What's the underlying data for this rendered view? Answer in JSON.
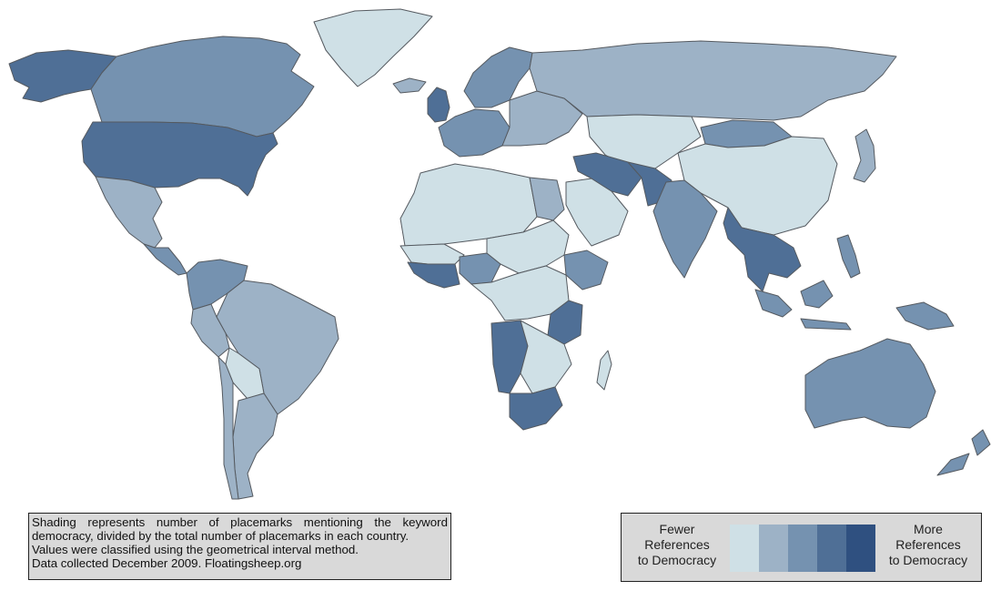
{
  "map": {
    "classes": [
      "#cfe0e6",
      "#9db2c6",
      "#7592b0",
      "#4f6f96",
      "#2f5080"
    ],
    "ocean_color": "#ffffff",
    "border_color": "#555a60",
    "regions": [
      {
        "name": "alaska",
        "class": 3
      },
      {
        "name": "canada",
        "class": 2
      },
      {
        "name": "greenland",
        "class": 0
      },
      {
        "name": "usa",
        "class": 3
      },
      {
        "name": "mexico",
        "class": 1
      },
      {
        "name": "central-america",
        "class": 2
      },
      {
        "name": "colombia-venezuela",
        "class": 2
      },
      {
        "name": "brazil",
        "class": 1
      },
      {
        "name": "peru",
        "class": 1
      },
      {
        "name": "bolivia",
        "class": 0
      },
      {
        "name": "argentina",
        "class": 1
      },
      {
        "name": "chile",
        "class": 1
      },
      {
        "name": "iceland",
        "class": 1
      },
      {
        "name": "uk-ireland",
        "class": 3
      },
      {
        "name": "scandinavia",
        "class": 2
      },
      {
        "name": "western-europe",
        "class": 2
      },
      {
        "name": "eastern-europe",
        "class": 1
      },
      {
        "name": "russia",
        "class": 1
      },
      {
        "name": "kazakhstan",
        "class": 0
      },
      {
        "name": "mongolia",
        "class": 2
      },
      {
        "name": "china",
        "class": 0
      },
      {
        "name": "japan",
        "class": 1
      },
      {
        "name": "north-africa",
        "class": 0
      },
      {
        "name": "egypt",
        "class": 1
      },
      {
        "name": "arabia",
        "class": 0
      },
      {
        "name": "iran-iraq",
        "class": 3
      },
      {
        "name": "pakistan",
        "class": 3
      },
      {
        "name": "india",
        "class": 2
      },
      {
        "name": "myanmar-indochina",
        "class": 3
      },
      {
        "name": "west-africa",
        "class": 0
      },
      {
        "name": "guinea-coast",
        "class": 3
      },
      {
        "name": "nigeria",
        "class": 2
      },
      {
        "name": "sudan-chad",
        "class": 0
      },
      {
        "name": "ethiopia",
        "class": 2
      },
      {
        "name": "central-africa",
        "class": 0
      },
      {
        "name": "tanzania",
        "class": 3
      },
      {
        "name": "angola-namibia",
        "class": 3
      },
      {
        "name": "south-africa",
        "class": 3
      },
      {
        "name": "madagascar",
        "class": 0
      },
      {
        "name": "indonesia",
        "class": 2
      },
      {
        "name": "philippines",
        "class": 2
      },
      {
        "name": "papua",
        "class": 2
      },
      {
        "name": "australia",
        "class": 2
      },
      {
        "name": "new-zealand",
        "class": 2
      }
    ]
  },
  "note": {
    "lines": [
      "Shading represents number of placemarks mentioning the keyword",
      "democracy, divided by the total number of placemarks in each country.",
      "Values were classified using the geometrical interval method.",
      "Data collected December 2009. Floatingsheep.org"
    ]
  },
  "legend": {
    "left_lines": [
      "Fewer",
      "References",
      "to Democracy"
    ],
    "right_lines": [
      "More",
      "References",
      "to Democracy"
    ]
  }
}
